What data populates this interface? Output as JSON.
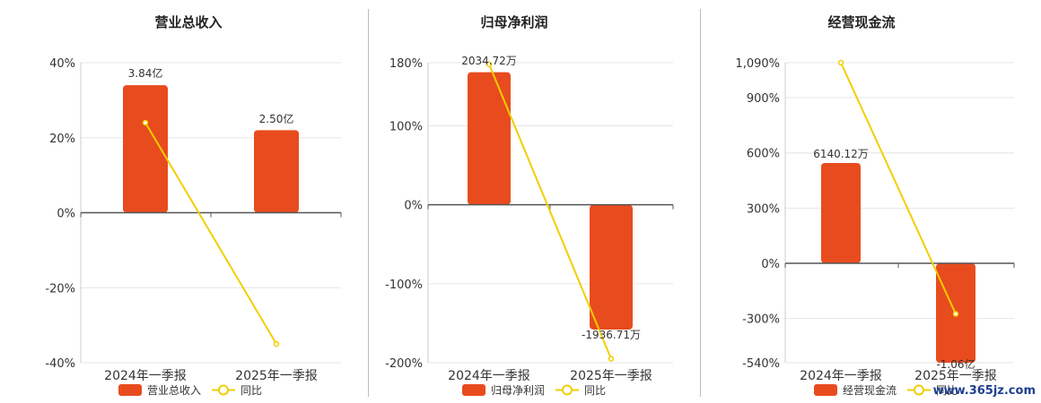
{
  "legend_line_label": "同比",
  "watermark": "www.365jz.com",
  "colors": {
    "bar": "#E84C1E",
    "line": "#F2CE00",
    "divider": "#BBBBBB",
    "grid": "#E6E6E6",
    "axis": "#555555"
  },
  "chart_data": [
    {
      "type": "bar",
      "title": "营业总收入",
      "categories": [
        "2024年一季报",
        "2025年一季报"
      ],
      "y_ticks": [
        "40%",
        "20%",
        "0%",
        "-20%",
        "-40%"
      ],
      "ylim": [
        -40,
        40
      ],
      "series": [
        {
          "name": "营业总收入",
          "type": "bar",
          "values": [
            34,
            22
          ],
          "labels": [
            "3.84亿",
            "2.50亿"
          ]
        },
        {
          "name": "同比",
          "type": "line",
          "values": [
            24,
            -35
          ]
        }
      ]
    },
    {
      "type": "bar",
      "title": "归母净利润",
      "categories": [
        "2024年一季报",
        "2025年一季报"
      ],
      "y_ticks": [
        "180%",
        "100%",
        "0%",
        "-100%",
        "-200%"
      ],
      "ylim": [
        -200,
        180
      ],
      "series": [
        {
          "name": "归母净利润",
          "type": "bar",
          "values": [
            168,
            -158
          ],
          "labels": [
            "2034.72万",
            "-1936.71万"
          ]
        },
        {
          "name": "同比",
          "type": "line",
          "values": [
            178,
            -195
          ]
        }
      ]
    },
    {
      "type": "bar",
      "title": "经营现金流",
      "categories": [
        "2024年一季报",
        "2025年一季报"
      ],
      "y_ticks": [
        "1,090%",
        "900%",
        "600%",
        "300%",
        "0%",
        "-300%",
        "-540%"
      ],
      "ylim": [
        -540,
        1090
      ],
      "series": [
        {
          "name": "经营现金流",
          "type": "bar",
          "values": [
            545,
            -540
          ],
          "labels": [
            "6140.12万",
            "-1.06亿"
          ]
        },
        {
          "name": "同比",
          "type": "line",
          "values": [
            1090,
            -275
          ]
        }
      ]
    }
  ]
}
